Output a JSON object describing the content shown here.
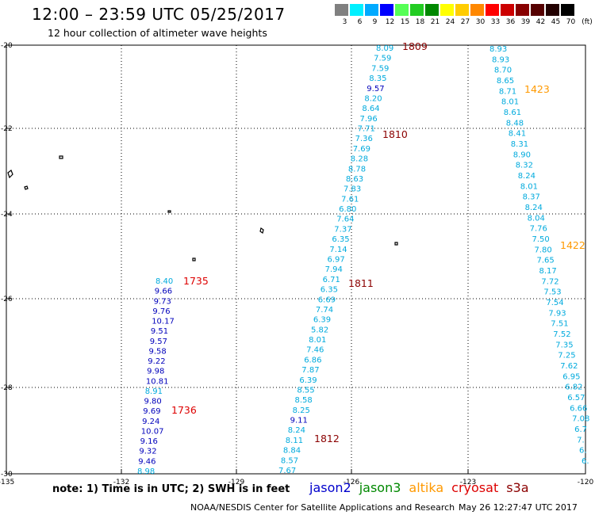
{
  "title": "12:00 – 23:59 UTC 05/25/2017",
  "subtitle": "12 hour collection of altimeter wave heights",
  "colorbar": {
    "unit": "(ft)",
    "labels": [
      "3",
      "6",
      "9",
      "12",
      "15",
      "18",
      "21",
      "24",
      "27",
      "30",
      "33",
      "36",
      "39",
      "42",
      "45",
      "70"
    ],
    "colors": [
      "#808080",
      "#00f0ff",
      "#00aaff",
      "#0000ff",
      "#55ff55",
      "#22cc22",
      "#008800",
      "#ffff00",
      "#ffcc00",
      "#ff8800",
      "#ff0000",
      "#cc0000",
      "#880000",
      "#550000",
      "#220000",
      "#000000"
    ]
  },
  "axes": {
    "lon_ticks": [
      "-135",
      "-132",
      "-129",
      "-126",
      "-123",
      "-120"
    ],
    "lat_ticks": [
      "-20",
      "-22",
      "-24",
      "-26",
      "-28",
      "-30"
    ]
  },
  "passes": [
    {
      "label": "1809",
      "color": "#8b0000"
    },
    {
      "label": "1810",
      "color": "#8b0000"
    },
    {
      "label": "1811",
      "color": "#8b0000"
    },
    {
      "label": "1812",
      "color": "#8b0000"
    },
    {
      "label": "1735",
      "color": "#dd0000"
    },
    {
      "label": "1736",
      "color": "#dd0000"
    },
    {
      "label": "1423",
      "color": "#ff9900"
    },
    {
      "label": "1422",
      "color": "#ff9900"
    }
  ],
  "tracks": {
    "track_a": {
      "color": "#00aadd",
      "values": [
        "8.09",
        "7.59",
        "7.59",
        "8.35",
        "9.57",
        "8.20",
        "8.64",
        "7.96",
        "7.71",
        "7.36",
        "7.69",
        "8.28",
        "8.78",
        "8.63",
        "7.83",
        "7.61",
        "6.80",
        "7.64",
        "7.37",
        "6.35",
        "7.14",
        "6.97",
        "7.94",
        "6.71",
        "6.35",
        "6.69",
        "7.74",
        "6.39",
        "5.82",
        "8.01",
        "7.46",
        "6.86",
        "7.87",
        "6.39",
        "8.55",
        "8.58",
        "8.25",
        "9.11",
        "8.24",
        "8.11",
        "8.84",
        "8.57",
        "7.67"
      ],
      "highlight": {
        "4": "#0000bb",
        "37": "#0000bb"
      }
    },
    "track_b": {
      "color": "#0000bb",
      "values": [
        "8.40",
        "9.66",
        "9.73",
        "9.76",
        "10.17",
        "9.51",
        "9.57",
        "9.58",
        "9.22",
        "9.98",
        "10.81",
        "8.91",
        "9.80",
        "9.69",
        "9.24",
        "10.07",
        "9.16",
        "9.32",
        "9.46",
        "8.98"
      ],
      "highlight": {
        "0": "#00aadd",
        "11": "#00aadd",
        "19": "#00aadd"
      }
    },
    "track_c": {
      "color": "#00aadd",
      "values": [
        "8.93",
        "8.93",
        "8.70",
        "8.65",
        "8.71",
        "8.01",
        "8.61",
        "8.48",
        "8.41",
        "8.31",
        "8.90",
        "8.32",
        "8.24",
        "8.01",
        "8.37",
        "8.24",
        "8.04",
        "7.76",
        "7.50",
        "7.80",
        "7.65",
        "8.17",
        "7.72",
        "7.53",
        "7.54",
        "7.93",
        "7.51",
        "7.52",
        "7.35",
        "7.25",
        "7.62",
        "6.95",
        "6.82",
        "6.57",
        "6.66",
        "7.08",
        "6.7",
        "7.",
        "6.",
        "6."
      ]
    }
  },
  "note": "note: 1) Time is in UTC; 2) SWH is in feet",
  "satellites": [
    {
      "name": "jason2",
      "color": "#0000cc"
    },
    {
      "name": "jason3",
      "color": "#008800"
    },
    {
      "name": "altika",
      "color": "#ff9900"
    },
    {
      "name": "cryosat",
      "color": "#dd0000"
    },
    {
      "name": "s3a",
      "color": "#8b0000"
    }
  ],
  "credit": "NOAA/NESDIS Center for Satellite Applications and Research",
  "timestamp": "May 26 12:27:47 UTC 2017"
}
